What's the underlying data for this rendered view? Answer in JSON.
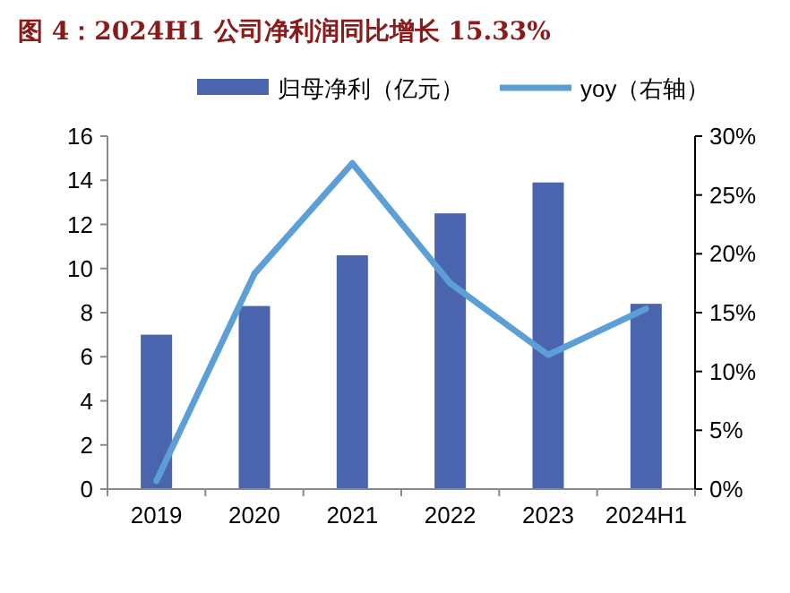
{
  "chart_data": {
    "type": "bar",
    "title": "图 4：2024H1 公司净利润同比增长 15.33%",
    "categories": [
      "2019",
      "2020",
      "2021",
      "2022",
      "2023",
      "2024H1"
    ],
    "series": [
      {
        "name": "归母净利（亿元）",
        "color": "#4a65ad",
        "values": [
          7.0,
          8.3,
          10.6,
          12.5,
          13.9,
          8.4
        ]
      },
      {
        "name": "yoy（右轴）",
        "type": "line",
        "axis": "y2",
        "color": "#5b9fd6",
        "values": [
          0.7,
          18.3,
          27.7,
          17.5,
          11.4,
          15.33
        ]
      }
    ],
    "ylim": [
      0,
      16
    ],
    "yticks": [
      0,
      2,
      4,
      6,
      8,
      10,
      12,
      14,
      16
    ],
    "y2lim": [
      0,
      30
    ],
    "y2ticks": [
      {
        "value": 0,
        "label": "0%"
      },
      {
        "value": 5,
        "label": "5%"
      },
      {
        "value": 10,
        "label": "10%"
      },
      {
        "value": 15,
        "label": "15%"
      },
      {
        "value": 20,
        "label": "20%"
      },
      {
        "value": 25,
        "label": "25%"
      },
      {
        "value": 30,
        "label": "30%"
      }
    ],
    "legend": "top",
    "grid": false
  }
}
